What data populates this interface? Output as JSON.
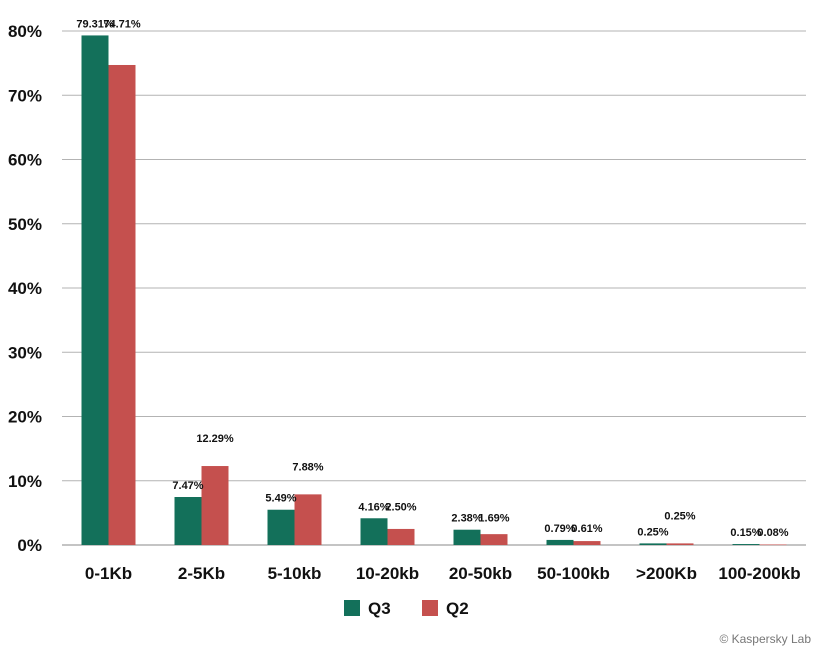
{
  "chart_data": {
    "type": "bar",
    "title": "",
    "xlabel": "",
    "ylabel": "",
    "categories": [
      "0-1Kb",
      "2-5Kb",
      "5-10kb",
      "10-20kb",
      "20-50kb",
      "50-100kb",
      ">200Kb",
      "100-200kb"
    ],
    "series": [
      {
        "name": "Q3",
        "color": "#13705A",
        "values": [
          79.31,
          7.47,
          5.49,
          4.16,
          2.38,
          0.79,
          0.25,
          0.15
        ],
        "labels": [
          "79.31%",
          "7.47%",
          "5.49%",
          "4.16%",
          "2.38%",
          "0.79%",
          "0.25%",
          "0.15%"
        ]
      },
      {
        "name": "Q2",
        "color": "#C5504E",
        "values": [
          74.71,
          12.29,
          7.88,
          2.5,
          1.69,
          0.61,
          0.25,
          0.08
        ],
        "labels": [
          "74.71%",
          "12.29%",
          "7.88%",
          "2.50%",
          "1.69%",
          "0.61%",
          "0.25%",
          "0.08%"
        ]
      }
    ],
    "ylim": [
      0,
      80
    ],
    "yticks": [
      {
        "value": 0,
        "label": "0%"
      },
      {
        "value": 10,
        "label": "10%"
      },
      {
        "value": 20,
        "label": "20%"
      },
      {
        "value": 30,
        "label": "30%"
      },
      {
        "value": 40,
        "label": "40%"
      },
      {
        "value": 50,
        "label": "50%"
      },
      {
        "value": 60,
        "label": "60%"
      },
      {
        "value": 70,
        "label": "70%"
      },
      {
        "value": 80,
        "label": "80%"
      }
    ],
    "grid": true,
    "legend_position": "bottom-center"
  },
  "footer": {
    "copyright": "© Kaspersky Lab"
  }
}
